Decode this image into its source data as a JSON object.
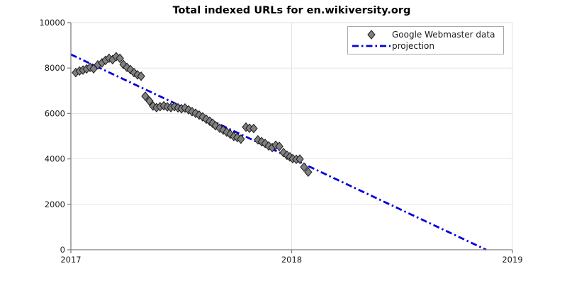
{
  "figure": {
    "title": "Total indexed URLs for en.wikiversity.org",
    "background": "#ffffff"
  },
  "colors": {
    "axis": "#808080",
    "grid": "#e0e0e0",
    "tick_label": "#1a1a1a",
    "marker_fill": "#808080",
    "marker_edge": "#1a1a1a",
    "projection_blue": "#0000dd",
    "legend_border": "#a9a9a9"
  },
  "chart_data": {
    "type": "scatter",
    "title": "Total indexed URLs for en.wikiversity.org",
    "xlabel": "",
    "ylabel": "",
    "xlim": [
      2017,
      2019
    ],
    "ylim": [
      0,
      10000
    ],
    "x_ticks": [
      2017,
      2018,
      2019
    ],
    "y_ticks": [
      0,
      2000,
      4000,
      6000,
      8000,
      10000
    ],
    "grid": true,
    "legend_position": "upper center-right",
    "series": [
      {
        "name": "Google Webmaster data",
        "type": "scatter",
        "marker": "diamond",
        "fill": "#808080",
        "edge": "#1a1a1a",
        "points": [
          [
            2017.022,
            7800
          ],
          [
            2017.039,
            7870
          ],
          [
            2017.055,
            7910
          ],
          [
            2017.071,
            7960
          ],
          [
            2017.087,
            8030
          ],
          [
            2017.103,
            7970
          ],
          [
            2017.122,
            8140
          ],
          [
            2017.141,
            8230
          ],
          [
            2017.157,
            8340
          ],
          [
            2017.173,
            8430
          ],
          [
            2017.189,
            8370
          ],
          [
            2017.205,
            8500
          ],
          [
            2017.222,
            8430
          ],
          [
            2017.238,
            8160
          ],
          [
            2017.254,
            8030
          ],
          [
            2017.27,
            7930
          ],
          [
            2017.286,
            7800
          ],
          [
            2017.302,
            7700
          ],
          [
            2017.318,
            7640
          ],
          [
            2017.337,
            6760
          ],
          [
            2017.356,
            6550
          ],
          [
            2017.372,
            6330
          ],
          [
            2017.388,
            6260
          ],
          [
            2017.404,
            6300
          ],
          [
            2017.421,
            6340
          ],
          [
            2017.437,
            6290
          ],
          [
            2017.453,
            6260
          ],
          [
            2017.469,
            6300
          ],
          [
            2017.485,
            6250
          ],
          [
            2017.501,
            6210
          ],
          [
            2017.517,
            6240
          ],
          [
            2017.533,
            6160
          ],
          [
            2017.549,
            6080
          ],
          [
            2017.565,
            6010
          ],
          [
            2017.581,
            5930
          ],
          [
            2017.597,
            5850
          ],
          [
            2017.613,
            5750
          ],
          [
            2017.629,
            5660
          ],
          [
            2017.642,
            5570
          ],
          [
            2017.655,
            5460
          ],
          [
            2017.674,
            5350
          ],
          [
            2017.69,
            5270
          ],
          [
            2017.706,
            5180
          ],
          [
            2017.722,
            5090
          ],
          [
            2017.738,
            4990
          ],
          [
            2017.754,
            4940
          ],
          [
            2017.77,
            4870
          ],
          [
            2017.793,
            5400
          ],
          [
            2017.809,
            5350
          ],
          [
            2017.828,
            5340
          ],
          [
            2017.847,
            4840
          ],
          [
            2017.864,
            4760
          ],
          [
            2017.88,
            4680
          ],
          [
            2017.896,
            4570
          ],
          [
            2017.912,
            4500
          ],
          [
            2017.928,
            4600
          ],
          [
            2017.944,
            4550
          ],
          [
            2017.963,
            4280
          ],
          [
            2017.979,
            4160
          ],
          [
            2017.992,
            4090
          ],
          [
            2018.005,
            4010
          ],
          [
            2018.021,
            3980
          ],
          [
            2018.037,
            3990
          ],
          [
            2018.056,
            3640
          ],
          [
            2018.075,
            3420
          ]
        ]
      },
      {
        "name": "projection",
        "type": "line",
        "dash": "dash-dot",
        "color": "#0000dd",
        "points": [
          [
            2017.0,
            8600
          ],
          [
            2018.881,
            0
          ]
        ]
      }
    ]
  }
}
